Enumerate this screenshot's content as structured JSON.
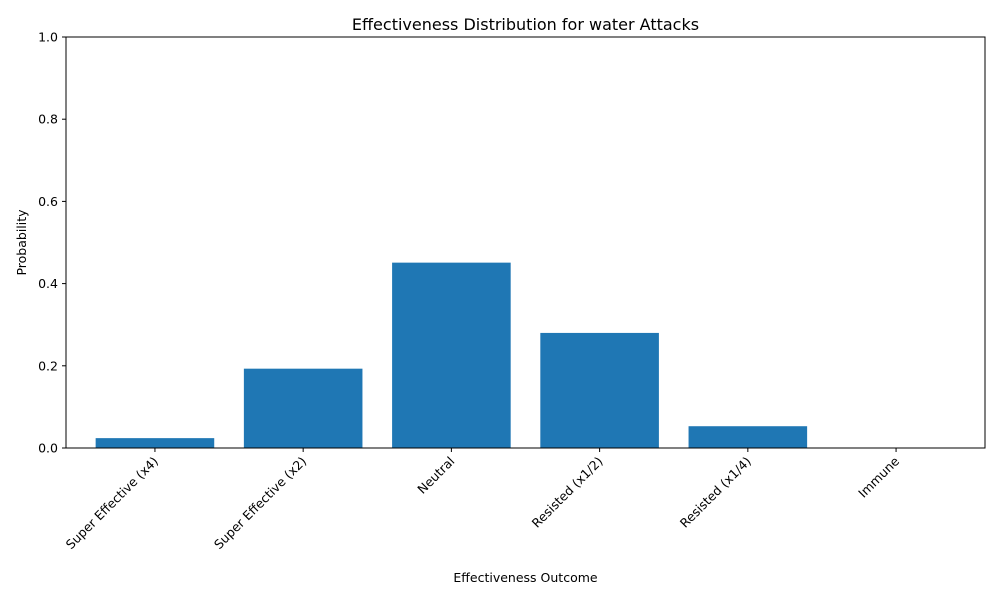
{
  "chart_data": {
    "type": "bar",
    "title": "Effectiveness Distribution for water Attacks",
    "xlabel": "Effectiveness Outcome",
    "ylabel": "Probability",
    "categories": [
      "Super Effective (x4)",
      "Super Effective (x2)",
      "Neutral",
      "Resisted (x1/2)",
      "Resisted (x1/4)",
      "Immune"
    ],
    "values": [
      0.024,
      0.193,
      0.451,
      0.28,
      0.053,
      0.0
    ],
    "ylim": [
      0,
      1.0
    ],
    "yticks": [
      "0.0",
      "0.2",
      "0.4",
      "0.6",
      "0.8",
      "1.0"
    ],
    "bar_color": "#1f77b4",
    "grid": false,
    "legend": "none"
  }
}
